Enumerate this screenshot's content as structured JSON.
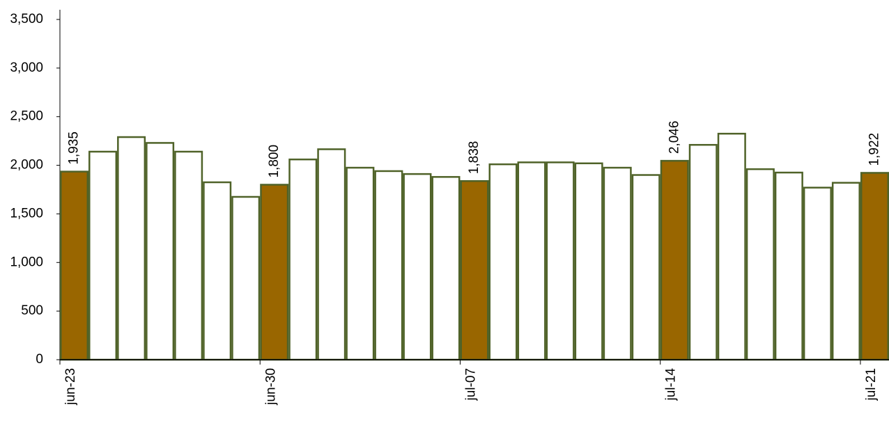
{
  "chart_data": {
    "type": "bar",
    "categories": [
      "jun-23",
      null,
      null,
      null,
      null,
      null,
      null,
      "jun-30",
      null,
      null,
      null,
      null,
      null,
      null,
      "jul-07",
      null,
      null,
      null,
      null,
      null,
      null,
      "jul-14",
      null,
      null,
      null,
      null,
      null,
      null,
      "jul-21"
    ],
    "values": [
      1935,
      2140,
      2290,
      2230,
      2140,
      1825,
      1675,
      1800,
      2060,
      2165,
      1975,
      1940,
      1910,
      1880,
      1838,
      2010,
      2030,
      2030,
      2020,
      1975,
      1900,
      2046,
      2210,
      2325,
      1960,
      1925,
      1770,
      1820,
      1922
    ],
    "value_labels": [
      "1,935",
      null,
      null,
      null,
      null,
      null,
      null,
      "1,800",
      null,
      null,
      null,
      null,
      null,
      null,
      "1,838",
      null,
      null,
      null,
      null,
      null,
      null,
      "2,046",
      null,
      null,
      null,
      null,
      null,
      null,
      "1,922"
    ],
    "colors": [
      "#996600",
      "#ffffff",
      "#ffffff",
      "#ffffff",
      "#ffffff",
      "#ffffff",
      "#ffffff",
      "#996600",
      "#ffffff",
      "#ffffff",
      "#ffffff",
      "#ffffff",
      "#ffffff",
      "#ffffff",
      "#996600",
      "#ffffff",
      "#ffffff",
      "#ffffff",
      "#ffffff",
      "#ffffff",
      "#ffffff",
      "#996600",
      "#ffffff",
      "#ffffff",
      "#ffffff",
      "#ffffff",
      "#ffffff",
      "#ffffff",
      "#996600"
    ],
    "edge_color": "#4f6228",
    "ylim": [
      0,
      3600
    ],
    "yticks": [
      0,
      500,
      {
        "value": 1000,
        "label": "1,000"
      },
      {
        "value": 1500,
        "label": "1,500"
      },
      {
        "value": 2000,
        "label": "2,000"
      },
      {
        "value": 2500,
        "label": "2,500"
      },
      {
        "value": 3000,
        "label": "3,000"
      },
      {
        "value": 3500,
        "label": "3,500"
      }
    ],
    "grid": false
  }
}
